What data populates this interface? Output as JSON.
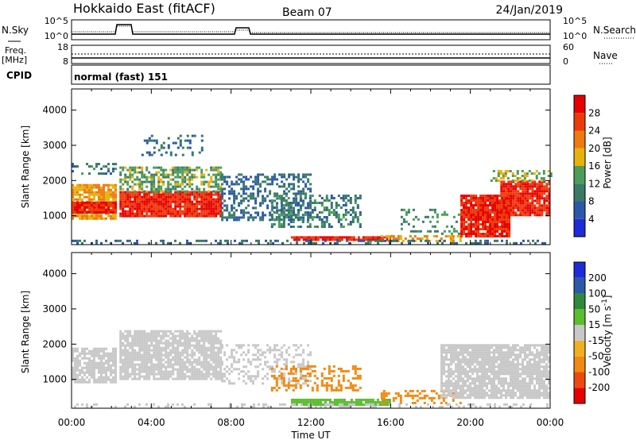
{
  "header": {
    "site": "Hokkaido East (fitACF)",
    "beam": "Beam 07",
    "date": "24/Jan/2019"
  },
  "panels": {
    "nsky_label": "N.Sky",
    "nsky_tick_top": "10^5",
    "nsky_tick_bottom": "10^0",
    "nsearch_label": "N.Search",
    "nsearch_tick_top": "10^5",
    "nsearch_tick_bottom": "10^0",
    "freq_label": "Freq.",
    "freq_unit": "[MHz]",
    "freq_tick_top": "18",
    "freq_tick_bottom": "8",
    "nave_label": "Nave",
    "nave_tick_top": "60",
    "nave_tick_bottom": "0",
    "cpid_label": "CPID",
    "cpid_value": "normal (fast) 151"
  },
  "colors": {
    "power": [
      "#1e2bd8",
      "#2b59a8",
      "#3a7a66",
      "#4c9d5a",
      "#e8b20c",
      "#ee7a10",
      "#ee3a0a",
      "#e60000"
    ],
    "velocity": [
      "#e60000",
      "#ee4a10",
      "#f08a10",
      "#f0b020",
      "#c8c8c8",
      "#5abf2e",
      "#2e8a3a",
      "#2b5ba8",
      "#1e2bd8"
    ],
    "ground_scatter": "#c0c0c0"
  },
  "chart_data": [
    {
      "type": "heatmap",
      "name": "power",
      "ylabel": "Slant Range [km]",
      "ylim": [
        180,
        4600
      ],
      "yticks": [
        1000,
        2000,
        3000,
        4000
      ],
      "xlim_hours": [
        0,
        24
      ],
      "colorbar_label": "Power [dB]",
      "colorbar_ticks": [
        4,
        8,
        12,
        16,
        20,
        24,
        28
      ],
      "colorbar_range": [
        0,
        32
      ],
      "regions": [
        {
          "t": [
            0.0,
            2.2
          ],
          "r": [
            900,
            1900
          ],
          "v": 20,
          "d": 0.85
        },
        {
          "t": [
            0.0,
            2.2
          ],
          "r": [
            1100,
            1400
          ],
          "v": 28,
          "d": 0.95
        },
        {
          "t": [
            0.0,
            2.2
          ],
          "r": [
            2200,
            2500
          ],
          "v": 10,
          "d": 0.3
        },
        {
          "t": [
            2.4,
            7.5
          ],
          "r": [
            1000,
            1700
          ],
          "v": 28,
          "d": 0.95
        },
        {
          "t": [
            2.4,
            7.5
          ],
          "r": [
            1700,
            2400
          ],
          "v": 14,
          "d": 0.6
        },
        {
          "t": [
            3.5,
            6.5
          ],
          "r": [
            2700,
            3300
          ],
          "v": 8,
          "d": 0.25
        },
        {
          "t": [
            7.5,
            12.0
          ],
          "r": [
            900,
            2200
          ],
          "v": 8,
          "d": 0.45
        },
        {
          "t": [
            10.0,
            14.5
          ],
          "r": [
            700,
            1600
          ],
          "v": 10,
          "d": 0.45
        },
        {
          "t": [
            11.0,
            16.0
          ],
          "r": [
            300,
            420
          ],
          "v": 28,
          "d": 0.9
        },
        {
          "t": [
            15.5,
            19.5
          ],
          "r": [
            300,
            450
          ],
          "v": 20,
          "d": 0.5
        },
        {
          "t": [
            16.5,
            19.5
          ],
          "r": [
            500,
            1200
          ],
          "v": 12,
          "d": 0.25
        },
        {
          "t": [
            19.5,
            22.0
          ],
          "r": [
            400,
            1600
          ],
          "v": 28,
          "d": 0.9
        },
        {
          "t": [
            21.5,
            24.0
          ],
          "r": [
            1000,
            2000
          ],
          "v": 28,
          "d": 0.9
        },
        {
          "t": [
            21.0,
            24.0
          ],
          "r": [
            2000,
            2300
          ],
          "v": 16,
          "d": 0.4
        },
        {
          "t": [
            0.0,
            24.0
          ],
          "r": [
            220,
            320
          ],
          "v": 8,
          "d": 0.35
        }
      ]
    },
    {
      "type": "heatmap",
      "name": "velocity",
      "ylabel": "Slant Range [km]",
      "ylim": [
        180,
        4600
      ],
      "yticks": [
        1000,
        2000,
        3000,
        4000
      ],
      "xlim_hours": [
        0,
        24
      ],
      "xticks": [
        "00:00",
        "04:00",
        "08:00",
        "12:00",
        "16:00",
        "20:00",
        "00:00"
      ],
      "xlabel": "Time UT",
      "colorbar_label": "Velocity [m s^-1]",
      "colorbar_ticks": [
        200,
        100,
        50,
        15,
        -15,
        -50,
        -100,
        -200
      ],
      "regions": [
        {
          "t": [
            0.0,
            2.2
          ],
          "r": [
            900,
            1900
          ],
          "v": 0,
          "d": 0.85
        },
        {
          "t": [
            2.4,
            7.5
          ],
          "r": [
            1000,
            2400
          ],
          "v": 0,
          "d": 0.85
        },
        {
          "t": [
            7.5,
            12.0
          ],
          "r": [
            900,
            2000
          ],
          "v": 0,
          "d": 0.35
        },
        {
          "t": [
            10.0,
            14.5
          ],
          "r": [
            700,
            1400
          ],
          "v": -60,
          "d": 0.35
        },
        {
          "t": [
            11.0,
            16.0
          ],
          "r": [
            300,
            450
          ],
          "v": 40,
          "d": 0.9
        },
        {
          "t": [
            15.5,
            19.5
          ],
          "r": [
            300,
            700
          ],
          "v": -70,
          "d": 0.3
        },
        {
          "t": [
            18.5,
            24.0
          ],
          "r": [
            500,
            2000
          ],
          "v": 0,
          "d": 0.85
        },
        {
          "t": [
            0.0,
            24.0
          ],
          "r": [
            220,
            320
          ],
          "v": 0,
          "d": 0.3
        }
      ]
    }
  ]
}
